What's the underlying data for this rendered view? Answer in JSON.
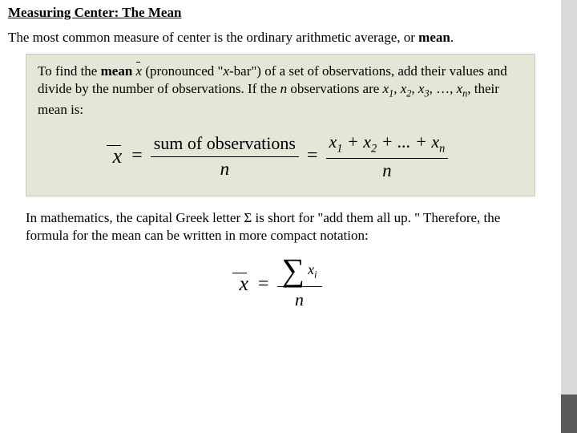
{
  "title": "Measuring Center: The Mean",
  "intro_a": "The most common measure of center is the ordinary arithmetic average, or ",
  "intro_b": "mean",
  "intro_c": ".",
  "def": {
    "a": "To find the ",
    "b": "mean",
    "c": "  (pronounced \"",
    "d": "x",
    "e": "-bar\") of a set of observations, add their values and divide by the number of observations.  If the ",
    "f": "n",
    "g": " observations are ",
    "x1": "x",
    "s1": "1",
    "x2": "x",
    "s2": "2",
    "x3": "x",
    "s3": "3",
    "dots": ", …, ",
    "xn": "x",
    "sn": "n",
    "h": ", their mean is:"
  },
  "formula1": {
    "xbar": "x",
    "eq": "=",
    "num_text": "sum of observations",
    "den": "n",
    "num2_a": "x",
    "num2_s1": "1",
    "num2_plus": " + ",
    "num2_b": "x",
    "num2_s2": "2",
    "num2_dots": " + ... + ",
    "num2_c": "x",
    "num2_sn": "n"
  },
  "math_text_a": "In mathematics, the capital Greek letter ",
  "math_sigma": "Σ",
  "math_text_b": " is short for \"add them all up. \"  Therefore, the formula for the mean can be written in more compact notation:",
  "formula2": {
    "xbar": "x",
    "eq": "=",
    "sigma": "∑",
    "xi": "x",
    "xi_sub": "i",
    "den": "n"
  },
  "colors": {
    "defbox_bg": "#e2e7d6",
    "sidebar": "#d9d9d9",
    "sidebar_accent": "#595959"
  }
}
